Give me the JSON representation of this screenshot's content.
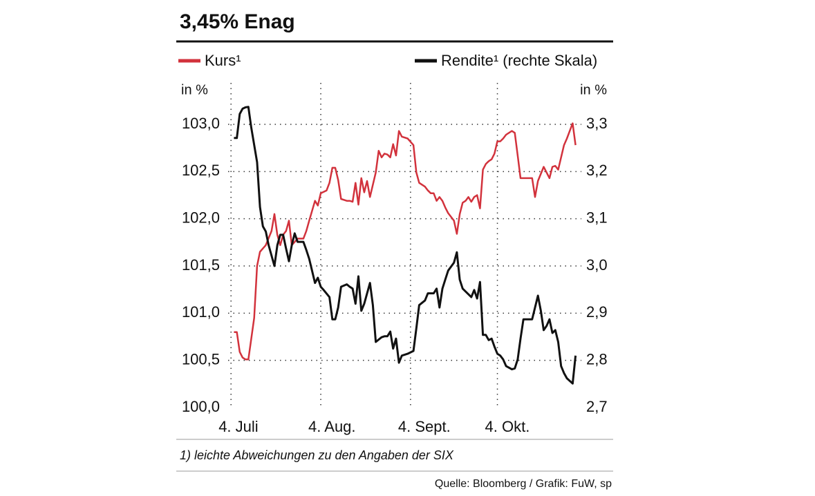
{
  "chart_data": {
    "type": "line",
    "title": "3,45% Enag",
    "ylabel": "in %",
    "y2label": "in %",
    "footnote": "1) leichte Abweichungen zu den Angaben der SIX",
    "source": "Quelle: Bloomberg / Grafik: FuW, sp",
    "legend": "top",
    "grid": true,
    "xlim": [
      -1,
      121
    ],
    "xticks": [
      {
        "value": 0,
        "label": "4. Juli"
      },
      {
        "value": 31,
        "label": "4. Aug."
      },
      {
        "value": 62,
        "label": "4. Sept."
      },
      {
        "value": 92,
        "label": "4. Okt."
      }
    ],
    "ylim": [
      100,
      103.4
    ],
    "yticks": [
      {
        "value": 100,
        "label": "100,0"
      },
      {
        "value": 100.5,
        "label": "100,5"
      },
      {
        "value": 101,
        "label": "101,0"
      },
      {
        "value": 101.5,
        "label": "101,5"
      },
      {
        "value": 102,
        "label": "102,0"
      },
      {
        "value": 102.5,
        "label": "102,5"
      },
      {
        "value": 103,
        "label": "103,0"
      }
    ],
    "y2lim": [
      2.7,
      3.38
    ],
    "y2ticks": [
      {
        "value": 2.7,
        "label": "2,7"
      },
      {
        "value": 2.8,
        "label": "2,8"
      },
      {
        "value": 2.9,
        "label": "2,9"
      },
      {
        "value": 3.0,
        "label": "3,0"
      },
      {
        "value": 3.1,
        "label": "3,1"
      },
      {
        "value": 3.2,
        "label": "3,2"
      },
      {
        "value": 3.3,
        "label": "3,3"
      }
    ],
    "series": [
      {
        "name": "Kurs¹",
        "color": "#d2323c",
        "x": [
          1,
          2,
          3,
          4,
          5,
          6,
          8,
          9,
          10,
          12,
          14,
          15,
          16,
          17,
          18,
          19,
          20,
          21,
          23,
          24,
          25,
          26,
          27,
          29,
          30,
          31,
          33,
          34,
          35,
          36,
          37,
          38,
          40,
          41,
          42,
          43,
          44,
          45,
          46,
          47,
          48,
          50,
          51,
          52,
          53,
          54,
          55,
          56,
          57,
          58,
          59,
          61,
          63,
          64,
          65,
          67,
          68,
          69,
          70,
          71,
          72,
          73,
          74,
          75,
          77,
          78,
          79,
          80,
          81,
          82,
          83,
          84,
          85,
          86,
          87,
          88,
          89,
          90,
          91,
          92,
          93,
          94,
          95,
          97,
          98,
          99,
          100,
          101,
          103,
          104,
          105,
          106,
          108,
          109,
          110,
          111,
          112,
          113,
          114,
          115,
          116,
          117,
          118,
          119
        ],
        "values": [
          100.8,
          100.8,
          100.59,
          100.53,
          100.51,
          100.51,
          100.95,
          101.5,
          101.65,
          101.72,
          101.87,
          102.05,
          101.83,
          101.72,
          101.83,
          101.87,
          101.98,
          101.72,
          101.79,
          101.79,
          101.79,
          101.87,
          101.98,
          102.19,
          102.14,
          102.27,
          102.3,
          102.38,
          102.54,
          102.54,
          102.41,
          102.21,
          102.19,
          102.19,
          102.18,
          102.38,
          102.15,
          102.43,
          102.28,
          102.4,
          102.23,
          102.49,
          102.72,
          102.65,
          102.69,
          102.68,
          102.65,
          102.79,
          102.67,
          102.93,
          102.87,
          102.85,
          102.78,
          102.49,
          102.38,
          102.34,
          102.3,
          102.27,
          102.27,
          102.19,
          102.23,
          102.19,
          102.12,
          102.06,
          101.98,
          101.84,
          102.05,
          102.17,
          102.19,
          102.23,
          102.18,
          102.23,
          102.25,
          102.11,
          102.52,
          102.58,
          102.61,
          102.63,
          102.69,
          102.82,
          102.82,
          102.85,
          102.89,
          102.93,
          102.91,
          102.67,
          102.43,
          102.43,
          102.43,
          102.43,
          102.23,
          102.4,
          102.55,
          102.49,
          102.43,
          102.55,
          102.56,
          102.52,
          102.65,
          102.78,
          102.85,
          102.93,
          103.01,
          102.78
        ]
      },
      {
        "name": "Rendite¹ (rechte Skala)",
        "color": "#111111",
        "axis": "y2",
        "x": [
          1,
          2,
          3,
          4,
          5,
          6,
          7,
          9,
          10,
          11,
          12,
          13,
          15,
          16,
          17,
          18,
          19,
          20,
          21,
          22,
          23,
          25,
          26,
          27,
          29,
          30,
          31,
          32,
          34,
          35,
          36,
          37,
          38,
          40,
          41,
          42,
          43,
          44,
          45,
          46,
          48,
          49,
          50,
          52,
          53,
          54,
          55,
          56,
          57,
          58,
          59,
          61,
          63,
          64,
          65,
          67,
          68,
          70,
          71,
          72,
          73,
          74,
          75,
          77,
          78,
          79,
          80,
          81,
          83,
          84,
          85,
          86,
          87,
          88,
          89,
          90,
          91,
          92,
          93,
          94,
          95,
          97,
          98,
          99,
          100,
          101,
          103,
          104,
          105,
          106,
          107,
          108,
          109,
          110,
          111,
          112,
          113,
          114,
          115,
          116,
          118,
          119
        ],
        "values": [
          3.271,
          3.271,
          3.322,
          3.333,
          3.336,
          3.337,
          3.293,
          3.22,
          3.125,
          3.084,
          3.073,
          3.044,
          3.0,
          3.044,
          3.066,
          3.066,
          3.037,
          3.01,
          3.044,
          3.069,
          3.051,
          3.051,
          3.034,
          3.015,
          2.964,
          2.975,
          2.956,
          2.949,
          2.934,
          2.887,
          2.887,
          2.912,
          2.956,
          2.961,
          2.956,
          2.952,
          2.92,
          2.978,
          2.905,
          2.92,
          2.964,
          2.917,
          2.839,
          2.849,
          2.851,
          2.851,
          2.861,
          2.825,
          2.846,
          2.795,
          2.81,
          2.814,
          2.82,
          2.868,
          2.917,
          2.927,
          2.942,
          2.942,
          2.952,
          2.912,
          2.952,
          2.971,
          2.99,
          3.007,
          3.029,
          2.971,
          2.952,
          2.946,
          2.934,
          2.949,
          2.931,
          2.966,
          2.854,
          2.854,
          2.843,
          2.846,
          2.829,
          2.814,
          2.81,
          2.802,
          2.788,
          2.781,
          2.783,
          2.802,
          2.846,
          2.887,
          2.887,
          2.887,
          2.912,
          2.937,
          2.905,
          2.864,
          2.873,
          2.887,
          2.858,
          2.864,
          2.839,
          2.788,
          2.773,
          2.762,
          2.751,
          2.81
        ]
      }
    ]
  }
}
